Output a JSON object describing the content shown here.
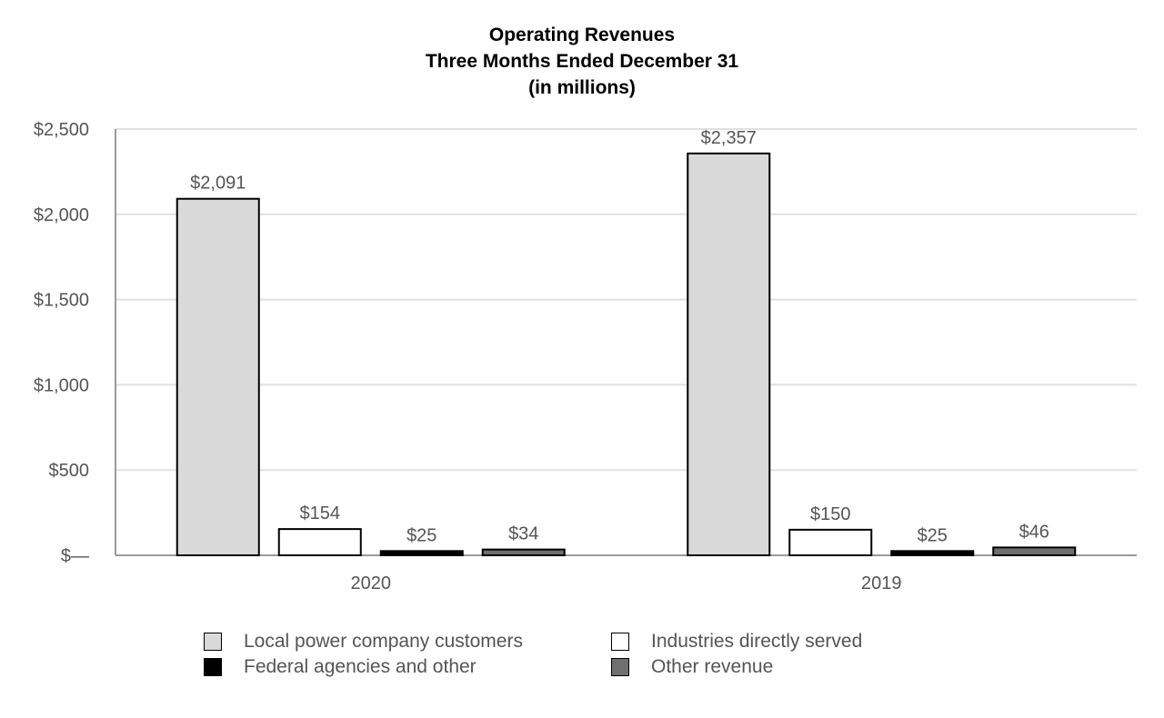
{
  "chart_data": {
    "type": "bar",
    "title": [
      "Operating Revenues",
      "Three Months Ended December 31",
      "(in millions)"
    ],
    "categories": [
      "2020",
      "2019"
    ],
    "series": [
      {
        "name": "Local power company customers",
        "values": [
          2091,
          2357
        ],
        "color": "#d9d9d9"
      },
      {
        "name": "Industries directly served",
        "values": [
          154,
          150
        ],
        "color": "#ffffff"
      },
      {
        "name": "Federal agencies and other",
        "values": [
          25,
          25
        ],
        "color": "#000000"
      },
      {
        "name": "Other revenue",
        "values": [
          34,
          46
        ],
        "color": "#6f6f6f"
      }
    ],
    "data_labels": [
      [
        "$2,091",
        "$154",
        "$25",
        "$34"
      ],
      [
        "$2,357",
        "$150",
        "$25",
        "$46"
      ]
    ],
    "y_ticks": [
      {
        "value": 0,
        "label": "$—"
      },
      {
        "value": 500,
        "label": "$500"
      },
      {
        "value": 1000,
        "label": "$1,000"
      },
      {
        "value": 1500,
        "label": "$1,500"
      },
      {
        "value": 2000,
        "label": "$2,000"
      },
      {
        "value": 2500,
        "label": "$2,500"
      }
    ],
    "ylim": [
      0,
      2500
    ],
    "grid": true,
    "legend": "bottom",
    "xlabel": "",
    "ylabel": ""
  }
}
